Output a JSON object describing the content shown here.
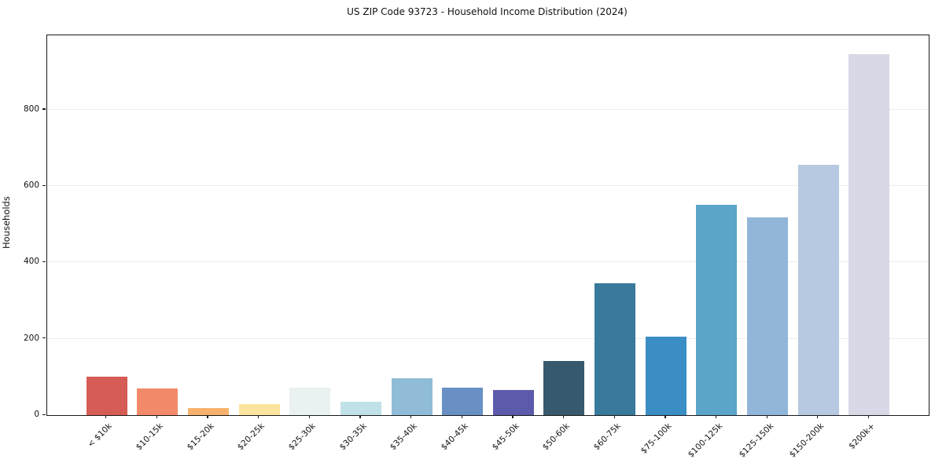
{
  "chart_data": {
    "type": "bar",
    "title": "US ZIP Code 93723 - Household Income Distribution (2024)",
    "xlabel": "",
    "ylabel": "Households",
    "categories": [
      "< $10k",
      "$10-15k",
      "$15-20k",
      "$20-25k",
      "$25-30k",
      "$30-35k",
      "$35-40k",
      "$40-45k",
      "$45-50k",
      "$50-60k",
      "$60-75k",
      "$75-100k",
      "$100-125k",
      "$125-150k",
      "$150-200k",
      "$200k+"
    ],
    "values": [
      100,
      70,
      18,
      28,
      73,
      36,
      96,
      71,
      66,
      142,
      345,
      205,
      550,
      518,
      655,
      945
    ],
    "bar_colors": [
      "#d55d55",
      "#f28a6a",
      "#f6b26d",
      "#fbe49e",
      "#e9f2f1",
      "#c1e1e8",
      "#90bcd8",
      "#6890c4",
      "#5c5aab",
      "#37596e",
      "#38799c",
      "#3a8ec4",
      "#5ba5c8",
      "#92b6d9",
      "#b7c9e0",
      "#d7d9e6"
    ],
    "yticks": [
      0,
      200,
      400,
      600,
      800
    ],
    "ylim": [
      0,
      995
    ],
    "grid": "horizontal",
    "gridline_color": "#ececec",
    "axis_color": "#1a1a1a",
    "background": "#ffffff",
    "legend_position": "none"
  }
}
